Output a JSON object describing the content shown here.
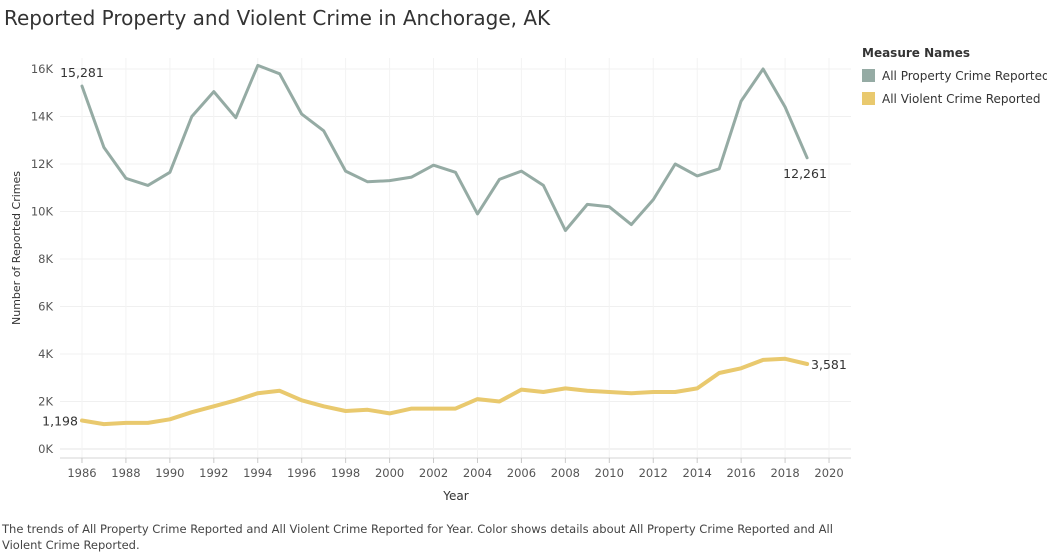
{
  "title": "Reported Property and Violent Crime in Anchorage, AK",
  "legend": {
    "title": "Measure Names",
    "items": [
      {
        "label": "All Property Crime Reported",
        "color": "#95aba4"
      },
      {
        "label": "All Violent Crime Reported",
        "color": "#e9c96e"
      }
    ]
  },
  "caption": "The trends of All Property Crime Reported and All Violent Crime Reported for Year.  Color shows details about All Property Crime Reported and All Violent Crime Reported.",
  "chart_data": {
    "type": "line",
    "title": "Reported Property and Violent Crime in Anchorage, AK",
    "xlabel": "Year",
    "ylabel": "Number of Reported Crimes",
    "x": [
      1986,
      1987,
      1988,
      1989,
      1990,
      1991,
      1992,
      1993,
      1994,
      1995,
      1996,
      1997,
      1998,
      1999,
      2000,
      2001,
      2002,
      2003,
      2004,
      2005,
      2006,
      2007,
      2008,
      2009,
      2010,
      2011,
      2012,
      2013,
      2014,
      2015,
      2016,
      2017,
      2018,
      2019
    ],
    "xlim": [
      1985,
      2021
    ],
    "ylim": [
      0,
      16500
    ],
    "xticks": [
      1986,
      1988,
      1990,
      1992,
      1994,
      1996,
      1998,
      2000,
      2002,
      2004,
      2006,
      2008,
      2010,
      2012,
      2014,
      2016,
      2018,
      2020
    ],
    "yticks": [
      0,
      2000,
      4000,
      6000,
      8000,
      10000,
      12000,
      14000,
      16000
    ],
    "ytick_labels": [
      "0K",
      "2K",
      "4K",
      "6K",
      "8K",
      "10K",
      "12K",
      "14K",
      "16K"
    ],
    "grid": true,
    "legend_position": "top-right",
    "series": [
      {
        "name": "All Property Crime Reported",
        "color": "#95aba4",
        "values": [
          15281,
          12700,
          11400,
          11100,
          11650,
          14000,
          15050,
          13950,
          16150,
          15800,
          14100,
          13400,
          11700,
          11250,
          11300,
          11450,
          11950,
          11650,
          9900,
          11350,
          11700,
          11100,
          9200,
          10300,
          10200,
          9450,
          10500,
          12000,
          11500,
          11800,
          14650,
          16000,
          14400,
          12261
        ],
        "labels": [
          {
            "year": 1986,
            "text": "15,281"
          },
          {
            "year": 2019,
            "text": "12,261"
          }
        ]
      },
      {
        "name": "All Violent Crime Reported",
        "color": "#e9c96e",
        "values": [
          1198,
          1050,
          1100,
          1100,
          1250,
          1550,
          1800,
          2050,
          2350,
          2450,
          2050,
          1800,
          1600,
          1650,
          1500,
          1700,
          1700,
          1700,
          2100,
          2000,
          2500,
          2400,
          2550,
          2450,
          2400,
          2350,
          2400,
          2400,
          2550,
          3200,
          3400,
          3750,
          3800,
          3581
        ],
        "labels": [
          {
            "year": 1986,
            "text": "1,198"
          },
          {
            "year": 2019,
            "text": "3,581"
          }
        ]
      }
    ]
  }
}
